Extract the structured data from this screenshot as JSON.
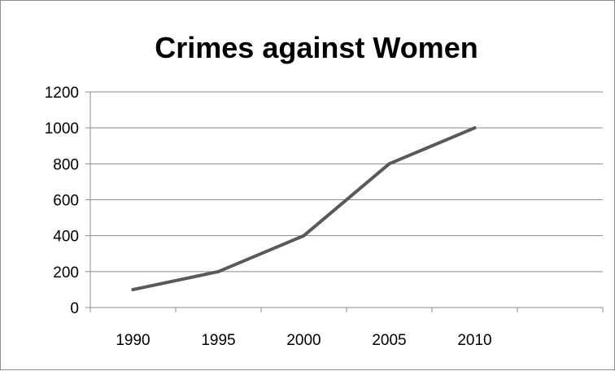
{
  "chart_data": {
    "type": "line",
    "title": "Crimes against Women",
    "xlabel": "",
    "ylabel": "",
    "categories": [
      "1990",
      "1995",
      "2000",
      "2005",
      "2010"
    ],
    "series": [
      {
        "values": [
          100,
          200,
          400,
          800,
          1000
        ],
        "color": "#595959"
      }
    ],
    "ylim": [
      0,
      1200
    ],
    "yticks": [
      0,
      200,
      400,
      600,
      800,
      1000,
      1200
    ],
    "grid": true,
    "legend": "none"
  }
}
